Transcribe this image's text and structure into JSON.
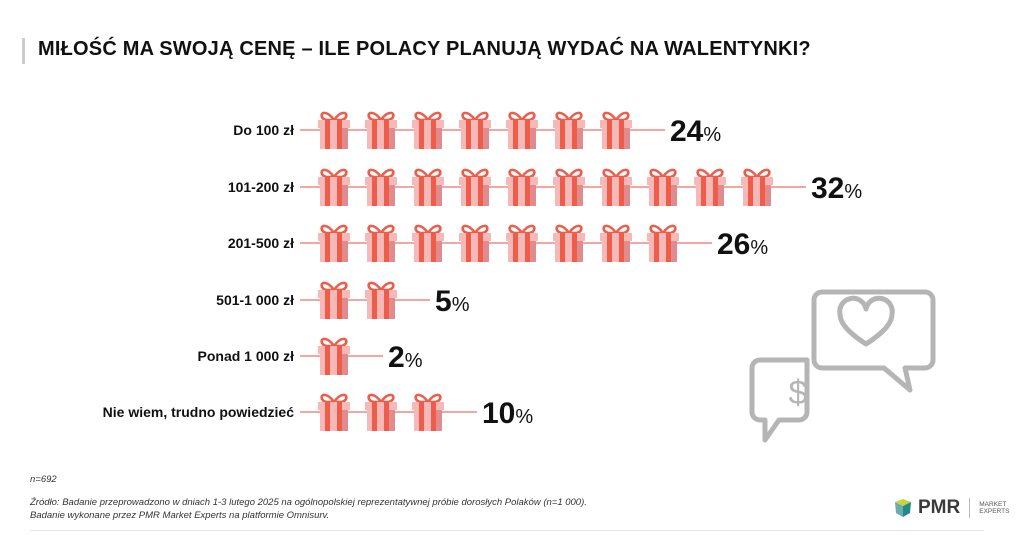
{
  "title": "MIŁOŚĆ MA SWOJĄ CENĘ – ILE POLACY PLANUJĄ WYDAĆ NA WALENTYNKI?",
  "chart_data": {
    "type": "bar",
    "style": "pictograph",
    "categories": [
      "Do 100 zł",
      "101-200 zł",
      "201-500 zł",
      "501-1 000 zł",
      "Ponad 1 000 zł",
      "Nie wiem, trudno powiedzieć"
    ],
    "values": [
      24,
      32,
      26,
      5,
      2,
      10
    ],
    "unit": "%",
    "icons_per_row": [
      7,
      10,
      8,
      2,
      1,
      3
    ]
  },
  "colors": {
    "gift_dark": "#ee5c4a",
    "gift_light": "#f7b9b8",
    "gift_mid": "#e08b8d",
    "line": "#f08a80",
    "icon_gray": "#b5b5b5"
  },
  "sample": "n=692",
  "source": "Źródło: Badanie przeprowadzono w dniach 1-3 lutego 2025 na ogólnopolskiej reprezentatywnej próbie dorosłych Polaków (n=1 000).",
  "source2": "Badanie wykonane przez PMR Market Experts na platformie Omnisurv.",
  "logo": {
    "name": "PMR",
    "tagline1": "MARKET",
    "tagline2": "EXPERTS"
  }
}
